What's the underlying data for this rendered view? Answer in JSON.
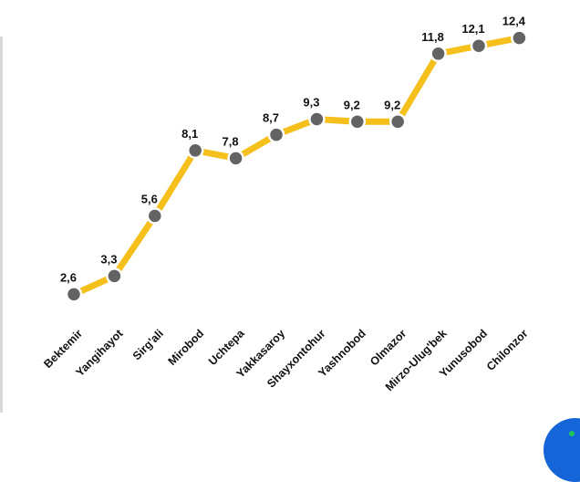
{
  "chart_data": {
    "type": "line",
    "categories": [
      "Bektemir",
      "Yangihayot",
      "Sirg'ali",
      "Mirobod",
      "Uchtepa",
      "Yakkasaroy",
      "Shayxontohur",
      "Yashnobod",
      "Olmazor",
      "Mirzo-Ulug'bek",
      "Yunusobod",
      "Chilonzor"
    ],
    "values": [
      2.6,
      3.3,
      5.6,
      8.1,
      7.8,
      8.7,
      9.3,
      9.2,
      9.2,
      11.8,
      12.1,
      12.4
    ],
    "value_labels": [
      "2,6",
      "3,3",
      "5,6",
      "8,1",
      "7,8",
      "8,7",
      "9,3",
      "9,2",
      "9,2",
      "11,8",
      "12,1",
      "12,4"
    ],
    "grid": false,
    "legend": "none",
    "colors": {
      "line": "#f5bf1c",
      "marker": "#636363",
      "marker_outline": "#ffffff",
      "text": "#111111"
    }
  },
  "decor": {
    "left_edge_color": "#d9d9d9",
    "badge_color": "#1565d8",
    "badge_dot_color": "#22c55e"
  }
}
